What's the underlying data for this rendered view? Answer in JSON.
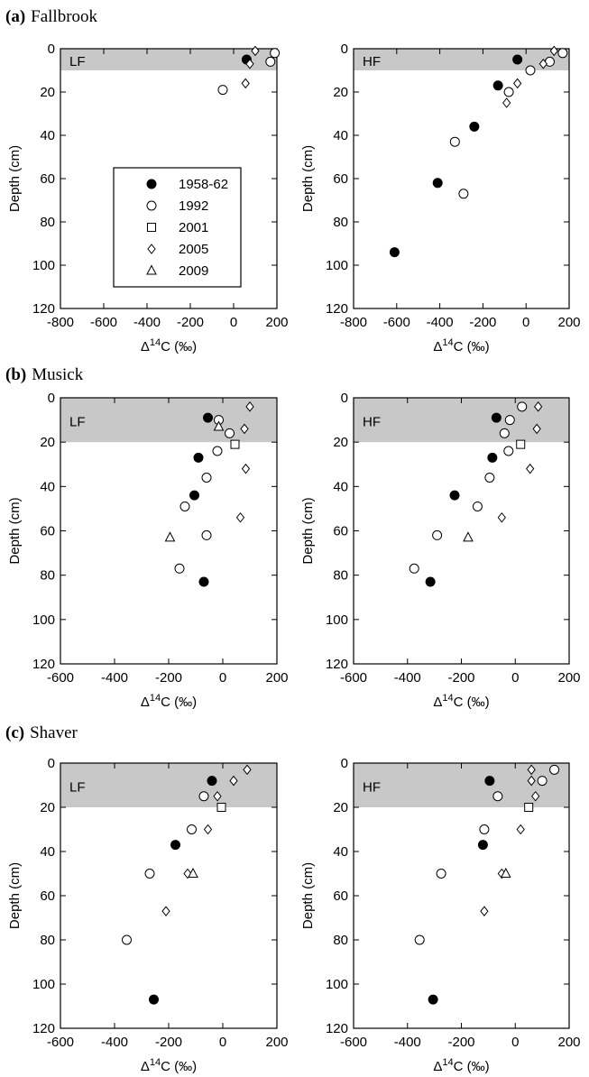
{
  "rows": [
    {
      "letter": "(a)",
      "name": "Fallbrook"
    },
    {
      "letter": "(b)",
      "name": "Musick"
    },
    {
      "letter": "(c)",
      "name": "Shaver"
    }
  ],
  "chart_data": [
    {
      "type": "scatter",
      "annotation": "LF",
      "xlabel": [
        "Δ",
        "14",
        "C (‰)"
      ],
      "ylabel": "Depth (cm)",
      "xlim": [
        -800,
        200
      ],
      "xticks": [
        -800,
        -600,
        -400,
        -200,
        0,
        200
      ],
      "ylim": [
        0,
        120
      ],
      "yticks": [
        0,
        20,
        40,
        60,
        80,
        100,
        120
      ],
      "y_inverted": true,
      "shade": [
        0,
        10
      ],
      "legend": {
        "entries": [
          {
            "name": "1958-62",
            "marker": "filled-circle"
          },
          {
            "name": "1992",
            "marker": "open-circle"
          },
          {
            "name": "2001",
            "marker": "open-square"
          },
          {
            "name": "2005",
            "marker": "open-diamond"
          },
          {
            "name": "2009",
            "marker": "open-triangle"
          }
        ]
      },
      "series": [
        {
          "x": [
            60
          ],
          "y": [
            5
          ]
        },
        {
          "x": [
            190,
            170,
            -50
          ],
          "y": [
            2,
            6,
            19
          ]
        },
        {
          "x": [],
          "y": []
        },
        {
          "x": [
            100,
            75,
            55
          ],
          "y": [
            1,
            7,
            16
          ]
        },
        {
          "x": [],
          "y": []
        }
      ]
    },
    {
      "type": "scatter",
      "annotation": "HF",
      "xlabel": [
        "Δ",
        "14",
        "C (‰)"
      ],
      "ylabel": "Depth (cm)",
      "xlim": [
        -800,
        200
      ],
      "xticks": [
        -800,
        -600,
        -400,
        -200,
        0,
        200
      ],
      "ylim": [
        0,
        120
      ],
      "yticks": [
        0,
        20,
        40,
        60,
        80,
        100,
        120
      ],
      "y_inverted": true,
      "shade": [
        0,
        10
      ],
      "series": [
        {
          "x": [
            -40,
            -130,
            -240,
            -410,
            -610
          ],
          "y": [
            5,
            17,
            36,
            62,
            94
          ]
        },
        {
          "x": [
            170,
            110,
            20,
            -80,
            -330,
            -290
          ],
          "y": [
            2,
            6,
            10,
            20,
            43,
            67
          ]
        },
        {
          "x": [],
          "y": []
        },
        {
          "x": [
            130,
            80,
            -40,
            -90
          ],
          "y": [
            1,
            7,
            16,
            25
          ]
        },
        {
          "x": [],
          "y": []
        }
      ]
    },
    {
      "type": "scatter",
      "annotation": "LF",
      "xlabel": [
        "Δ",
        "14",
        "C (‰)"
      ],
      "ylabel": "Depth (cm)",
      "xlim": [
        -600,
        200
      ],
      "xticks": [
        -600,
        -400,
        -200,
        0,
        200
      ],
      "ylim": [
        0,
        120
      ],
      "yticks": [
        0,
        20,
        40,
        60,
        80,
        100,
        120
      ],
      "y_inverted": true,
      "shade": [
        0,
        20
      ],
      "series": [
        {
          "x": [
            -55,
            -90,
            -105,
            -70
          ],
          "y": [
            9,
            27,
            44,
            83
          ]
        },
        {
          "x": [
            -15,
            25,
            -20,
            -60,
            -140,
            -60,
            -160
          ],
          "y": [
            10,
            16,
            24,
            36,
            49,
            62,
            77
          ]
        },
        {
          "x": [
            45
          ],
          "y": [
            21
          ]
        },
        {
          "x": [
            100,
            80,
            85,
            65
          ],
          "y": [
            4,
            14,
            32,
            54
          ]
        },
        {
          "x": [
            -15,
            -195
          ],
          "y": [
            13,
            63
          ]
        }
      ]
    },
    {
      "type": "scatter",
      "annotation": "HF",
      "xlabel": [
        "Δ",
        "14",
        "C (‰)"
      ],
      "ylabel": "Depth (cm)",
      "xlim": [
        -600,
        200
      ],
      "xticks": [
        -600,
        -400,
        -200,
        0,
        200
      ],
      "ylim": [
        0,
        120
      ],
      "yticks": [
        0,
        20,
        40,
        60,
        80,
        100,
        120
      ],
      "y_inverted": true,
      "shade": [
        0,
        20
      ],
      "series": [
        {
          "x": [
            -70,
            -85,
            -225,
            -315
          ],
          "y": [
            9,
            27,
            44,
            83
          ]
        },
        {
          "x": [
            25,
            -20,
            -40,
            -25,
            -95,
            -140,
            -290,
            -375
          ],
          "y": [
            4,
            10,
            16,
            24,
            36,
            49,
            62,
            77
          ]
        },
        {
          "x": [
            20
          ],
          "y": [
            21
          ]
        },
        {
          "x": [
            85,
            80,
            55,
            -50
          ],
          "y": [
            4,
            14,
            32,
            54
          ]
        },
        {
          "x": [
            -175
          ],
          "y": [
            63
          ]
        }
      ]
    },
    {
      "type": "scatter",
      "annotation": "LF",
      "xlabel": [
        "Δ",
        "14",
        "C (‰)"
      ],
      "ylabel": "Depth (cm)",
      "xlim": [
        -600,
        200
      ],
      "xticks": [
        -600,
        -400,
        -200,
        0,
        200
      ],
      "ylim": [
        0,
        120
      ],
      "yticks": [
        0,
        20,
        40,
        60,
        80,
        100,
        120
      ],
      "y_inverted": true,
      "shade": [
        0,
        20
      ],
      "series": [
        {
          "x": [
            -40,
            -175,
            -255
          ],
          "y": [
            8,
            37,
            107
          ]
        },
        {
          "x": [
            -70,
            -115,
            -270,
            -355
          ],
          "y": [
            15,
            30,
            50,
            80
          ]
        },
        {
          "x": [
            -5
          ],
          "y": [
            20
          ]
        },
        {
          "x": [
            90,
            40,
            -20,
            -55,
            -130,
            -210
          ],
          "y": [
            3,
            8,
            15,
            30,
            50,
            67
          ]
        },
        {
          "x": [
            -110
          ],
          "y": [
            50
          ]
        }
      ]
    },
    {
      "type": "scatter",
      "annotation": "HF",
      "xlabel": [
        "Δ",
        "14",
        "C (‰)"
      ],
      "ylabel": "Depth (cm)",
      "xlim": [
        -600,
        200
      ],
      "xticks": [
        -600,
        -400,
        -200,
        0,
        200
      ],
      "ylim": [
        0,
        120
      ],
      "yticks": [
        0,
        20,
        40,
        60,
        80,
        100,
        120
      ],
      "y_inverted": true,
      "shade": [
        0,
        20
      ],
      "series": [
        {
          "x": [
            -95,
            -120,
            -305
          ],
          "y": [
            8,
            37,
            107
          ]
        },
        {
          "x": [
            145,
            100,
            -65,
            -115,
            -275,
            -355
          ],
          "y": [
            3,
            8,
            15,
            30,
            50,
            80
          ]
        },
        {
          "x": [
            50
          ],
          "y": [
            20
          ]
        },
        {
          "x": [
            60,
            60,
            75,
            20,
            -50,
            -115
          ],
          "y": [
            3,
            8,
            15,
            30,
            50,
            67
          ]
        },
        {
          "x": [
            -35
          ],
          "y": [
            50
          ]
        }
      ]
    }
  ]
}
